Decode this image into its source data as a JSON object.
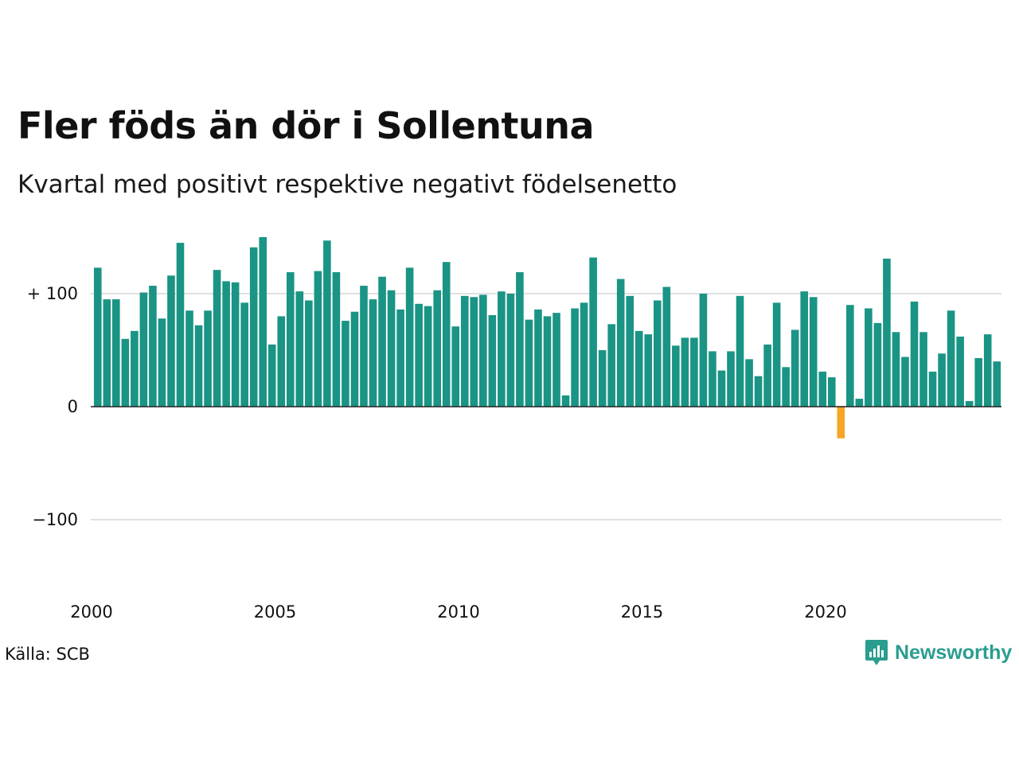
{
  "chart_data": {
    "type": "bar",
    "title": "Fler föds än dör i Sollentuna",
    "subtitle": "Kvartal med positivt respektive negativt födelsenetto",
    "x_tick_labels": [
      "2000",
      "2005",
      "2010",
      "2015",
      "2020"
    ],
    "y_tick_labels": [
      "+ 100",
      "0",
      "−100"
    ],
    "y_ticks": [
      100,
      0,
      -100
    ],
    "ylim": [
      -160,
      150
    ],
    "xlabel": "",
    "ylabel": "",
    "grid": true,
    "colors": {
      "positive": "#1a9484",
      "negative": "#f5a623",
      "grid": "#e0e0e0",
      "zero_line": "#222222"
    },
    "start_year": 2000,
    "quarters_per_year": 4,
    "values": [
      123,
      95,
      95,
      60,
      67,
      101,
      107,
      78,
      116,
      145,
      85,
      72,
      85,
      121,
      111,
      110,
      92,
      141,
      150,
      55,
      80,
      119,
      102,
      94,
      120,
      147,
      119,
      76,
      84,
      107,
      95,
      115,
      103,
      86,
      123,
      91,
      89,
      103,
      128,
      71,
      98,
      97,
      99,
      81,
      102,
      100,
      119,
      77,
      86,
      80,
      83,
      10,
      87,
      92,
      132,
      50,
      73,
      113,
      98,
      67,
      64,
      94,
      106,
      54,
      61,
      61,
      100,
      49,
      32,
      49,
      98,
      42,
      27,
      55,
      92,
      35,
      68,
      102,
      97,
      31,
      26,
      -28,
      90,
      7,
      87,
      74,
      131,
      66,
      44,
      93,
      66,
      31,
      47,
      85,
      62,
      5,
      43,
      64,
      40
    ]
  },
  "source": "Källa: SCB",
  "logo": {
    "text": "Newsworthy",
    "icon": "newsworthy-chart-bubble-icon"
  }
}
